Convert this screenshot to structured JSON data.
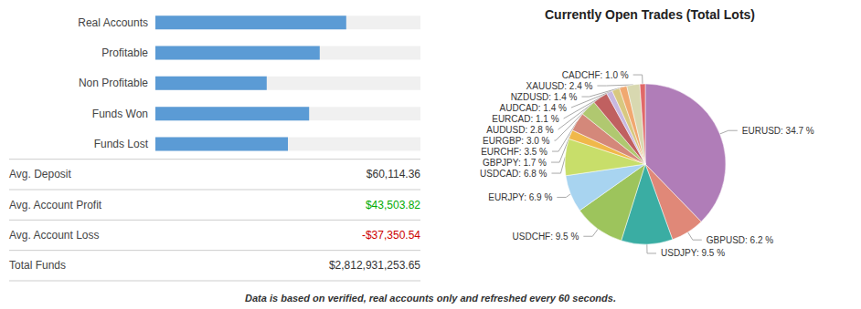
{
  "chart_data": [
    {
      "type": "bar",
      "orientation": "horizontal",
      "categories": [
        "Real Accounts",
        "Profitable",
        "Non Profitable",
        "Funds Won",
        "Funds Lost"
      ],
      "values": [
        0.72,
        0.62,
        0.42,
        0.58,
        0.5
      ],
      "color": "#5b9bd5",
      "xlim": [
        0,
        1
      ],
      "xticks": [
        0,
        1
      ],
      "grid": false,
      "tick_labels": "y"
    },
    {
      "type": "table",
      "rows": [
        {
          "label": "Avg. Deposit",
          "value": "$60,114.36",
          "color": "#333333"
        },
        {
          "label": "Avg. Account Profit",
          "value": "$43,503.82",
          "color": "#00aa00"
        },
        {
          "label": "Avg. Account Loss",
          "value": "-$37,350.54",
          "color": "#cc0000"
        },
        {
          "label": "Total Funds",
          "value": "$2,812,931,253.65",
          "color": "#333333"
        }
      ]
    },
    {
      "type": "pie",
      "title": "Currently Open Trades (Total Lots)",
      "categories": [
        "EURUSD",
        "GBPUSD",
        "USDJPY",
        "USDCHF",
        "EURJPY",
        "USDCAD",
        "GBPJPY",
        "EURCHF",
        "EURGBP",
        "AUDUSD",
        "EURCAD",
        "AUDCAD",
        "NZDUSD",
        "XAUUSD",
        "CADCHF"
      ],
      "values": [
        34.7,
        6.2,
        9.5,
        9.5,
        6.9,
        6.8,
        1.7,
        3.5,
        3.0,
        2.8,
        1.1,
        1.4,
        1.4,
        2.4,
        1.0
      ],
      "value_labels": [
        "EURUSD: 34.7 %",
        "GBPUSD: 6.2 %",
        "USDJPY: 9.5 %",
        "USDCHF: 9.5 %",
        "EURJPY: 6.9 %",
        "USDCAD: 6.8 %",
        "GBPJPY: 1.7 %",
        "EURCHF: 3.5 %",
        "EURGBP: 3.0 %",
        "AUDUSD: 2.8 %",
        "EURCAD: 1.1 %",
        "AUDCAD: 1.4 %",
        "NZDUSD: 1.4 %",
        "XAUUSD: 2.4 %",
        "CADCHF: 1.0 %"
      ],
      "colors": [
        "#b07db8",
        "#e08878",
        "#3aada3",
        "#9dc45c",
        "#a8d4f0",
        "#c8de6a",
        "#f0b84a",
        "#d4887a",
        "#b0c870",
        "#c06060",
        "#c8b8e0",
        "#d8c880",
        "#f0a870",
        "#d8d8b0",
        "#e06868"
      ],
      "data_labels": true
    }
  ],
  "footnote": "Data is based on verified, real accounts only and refreshed every 60 seconds."
}
